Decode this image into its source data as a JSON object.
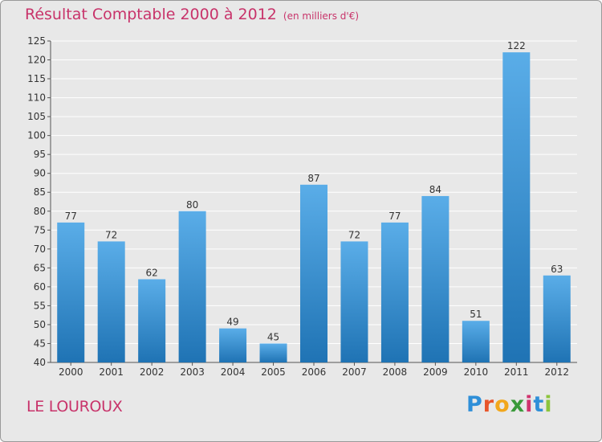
{
  "chart_title": "Résultat Comptable 2000 à 2012",
  "chart_unit": "(en milliers d'€)",
  "commune_name": "LE LOUROUX",
  "logo": {
    "text": "Proxiti",
    "letters": [
      "P",
      "r",
      "o",
      "x",
      "i",
      "t",
      "i"
    ],
    "colors": [
      "#2f8fd8",
      "#e8552a",
      "#f2a71c",
      "#3a9a3a",
      "#d0336e",
      "#2f8fd8",
      "#8cc43c"
    ]
  },
  "colors": {
    "bar_top": "#5aade8",
    "bar_bottom": "#1f73b4",
    "title": "#c8336a",
    "grid": "#ffffff",
    "axis": "#555555"
  },
  "chart_data": {
    "type": "bar",
    "title": "Résultat Comptable 2000 à 2012",
    "subtitle": "(en milliers d'€)",
    "xlabel": "",
    "ylabel": "",
    "categories": [
      "2000",
      "2001",
      "2002",
      "2003",
      "2004",
      "2005",
      "2006",
      "2007",
      "2008",
      "2009",
      "2010",
      "2011",
      "2012"
    ],
    "values": [
      77,
      72,
      62,
      80,
      49,
      45,
      87,
      72,
      77,
      84,
      51,
      122,
      63
    ],
    "ylim": [
      40,
      125
    ],
    "yticks": [
      40,
      45,
      50,
      55,
      60,
      65,
      70,
      75,
      80,
      85,
      90,
      95,
      100,
      105,
      110,
      115,
      120,
      125
    ],
    "grid": true,
    "data_labels": true
  }
}
